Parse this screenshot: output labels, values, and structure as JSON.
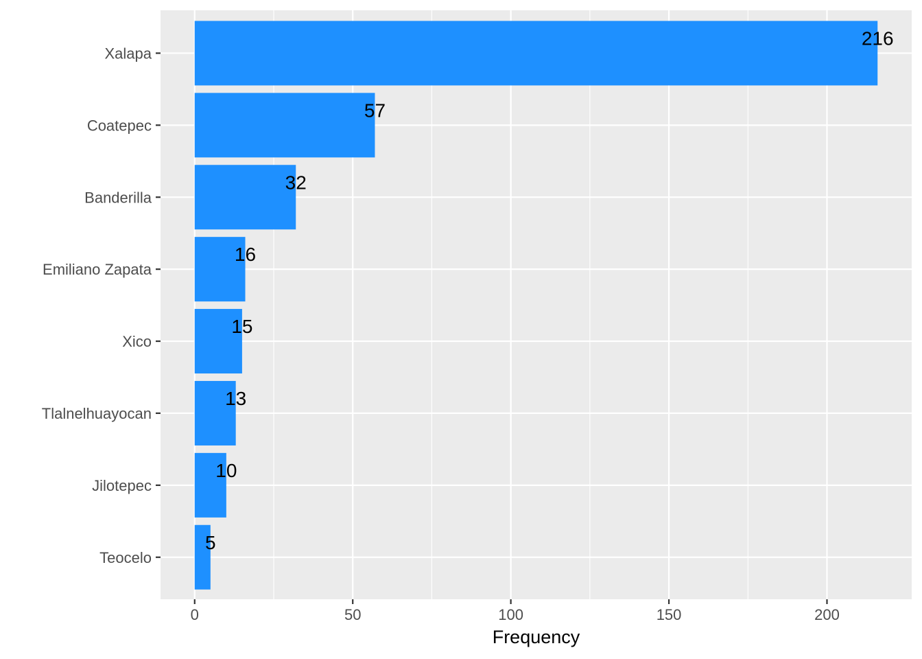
{
  "chart_data": {
    "type": "bar",
    "orientation": "horizontal",
    "title": "",
    "xlabel": "Frequency",
    "ylabel": "",
    "categories": [
      "Xalapa",
      "Coatepec",
      "Banderilla",
      "Emiliano Zapata",
      "Xico",
      "Tlalnelhuayocan",
      "Jilotepec",
      "Teocelo"
    ],
    "values": [
      216,
      57,
      32,
      16,
      15,
      13,
      10,
      5
    ],
    "xlim": [
      -10.8,
      226.8
    ],
    "xticks": [
      0,
      50,
      100,
      150,
      200
    ],
    "grid": true,
    "legend": "none",
    "data_labels": true
  },
  "colors": {
    "bar": "#1E90FF",
    "panel": "#EBEBEB",
    "gridline": "#FFFFFF",
    "tick_text": "#4D4D4D",
    "tick_mark": "#333333"
  }
}
